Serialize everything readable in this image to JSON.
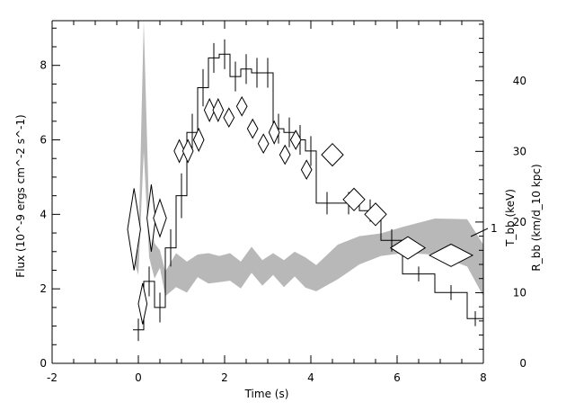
{
  "chart_data": {
    "type": "line",
    "title": "",
    "xlabel": "Time (s)",
    "ylabel": "Flux (10^-9 ergs cm^-2 s^-1)",
    "y2label_temperature": "T_bb (keV)",
    "y2label_radius": "R_bb (km/d_10 kpc)",
    "xlim": [
      -2,
      8
    ],
    "ylim": [
      0,
      9.2
    ],
    "y2lim": [
      0,
      48.5
    ],
    "x_ticks": [
      -2,
      0,
      2,
      4,
      6,
      8
    ],
    "y_ticks": [
      0,
      2,
      4,
      6,
      8
    ],
    "y2_ticks": [
      0,
      10,
      20,
      30,
      40
    ],
    "annotation": "1",
    "grid": false,
    "series": [
      {
        "kind": "step-flux",
        "color": "#000000",
        "x_edges": [
          -0.125,
          0.125,
          0.375,
          0.625,
          0.875,
          1.125,
          1.375,
          1.625,
          1.875,
          2.125,
          2.375,
          2.625,
          2.875,
          3.125,
          3.375,
          3.625,
          3.875,
          4.125,
          4.625,
          5.125,
          5.625,
          6.125,
          6.875,
          7.625,
          8.0
        ],
        "values": [
          0.9,
          2.2,
          1.5,
          3.1,
          4.5,
          6.2,
          7.4,
          8.2,
          8.3,
          7.7,
          7.9,
          7.8,
          7.8,
          6.3,
          6.2,
          6.0,
          5.7,
          4.3,
          4.3,
          4.1,
          3.3,
          2.4,
          1.9,
          1.2
        ],
        "errors": [
          0.3,
          0.4,
          0.4,
          0.5,
          0.6,
          0.5,
          0.5,
          0.4,
          0.4,
          0.4,
          0.4,
          0.4,
          0.4,
          0.4,
          0.4,
          0.4,
          0.4,
          0.3,
          0.3,
          0.3,
          0.3,
          0.2,
          0.2,
          0.2
        ]
      },
      {
        "kind": "diamond-temperature",
        "color": "#000000",
        "x": [
          -0.1,
          0.1,
          0.3,
          0.5,
          0.95,
          1.15,
          1.4,
          1.65,
          1.85,
          2.1,
          2.4,
          2.65,
          2.9,
          3.15,
          3.4,
          3.65,
          3.9,
          4.5,
          5.0,
          5.5,
          6.25,
          7.25
        ],
        "x_halfwidth": [
          0.15,
          0.1,
          0.1,
          0.15,
          0.12,
          0.12,
          0.12,
          0.12,
          0.12,
          0.12,
          0.12,
          0.12,
          0.12,
          0.12,
          0.12,
          0.12,
          0.12,
          0.25,
          0.25,
          0.25,
          0.4,
          0.5
        ],
        "y": [
          3.6,
          1.6,
          3.9,
          3.9,
          5.7,
          5.7,
          6.0,
          6.8,
          6.8,
          6.6,
          6.9,
          6.3,
          5.9,
          6.2,
          5.6,
          6.0,
          5.2,
          5.6,
          4.4,
          4.0,
          3.1,
          2.9
        ],
        "y_halfheight": [
          1.1,
          0.55,
          0.9,
          0.5,
          0.3,
          0.3,
          0.3,
          0.3,
          0.3,
          0.25,
          0.25,
          0.25,
          0.25,
          0.3,
          0.25,
          0.25,
          0.25,
          0.3,
          0.3,
          0.3,
          0.3,
          0.3
        ]
      },
      {
        "kind": "band-radius",
        "color": "#b8b8b8",
        "x": [
          -0.125,
          0.0,
          0.125,
          0.25,
          0.375,
          0.5,
          0.625,
          0.875,
          1.125,
          1.375,
          1.625,
          1.875,
          2.125,
          2.375,
          2.625,
          2.875,
          3.125,
          3.375,
          3.625,
          3.875,
          4.125,
          4.625,
          5.125,
          5.625,
          6.125,
          6.875,
          7.625,
          8.0
        ],
        "lower": [
          15.0,
          12.5,
          30.0,
          15.0,
          12.0,
          13.5,
          9.5,
          10.8,
          10.0,
          12.2,
          11.3,
          11.5,
          11.7,
          10.6,
          12.8,
          11.0,
          12.5,
          10.8,
          12.3,
          10.7,
          10.2,
          11.9,
          14.0,
          15.2,
          15.6,
          15.4,
          13.7,
          9.5
        ],
        "upper": [
          18.5,
          16.0,
          48.5,
          21.0,
          17.0,
          16.0,
          13.0,
          15.6,
          14.4,
          15.4,
          15.6,
          15.2,
          15.6,
          14.4,
          16.5,
          14.6,
          15.6,
          14.6,
          15.8,
          15.0,
          13.9,
          16.8,
          18.0,
          18.4,
          19.3,
          20.5,
          20.4,
          16.8
        ]
      }
    ]
  }
}
